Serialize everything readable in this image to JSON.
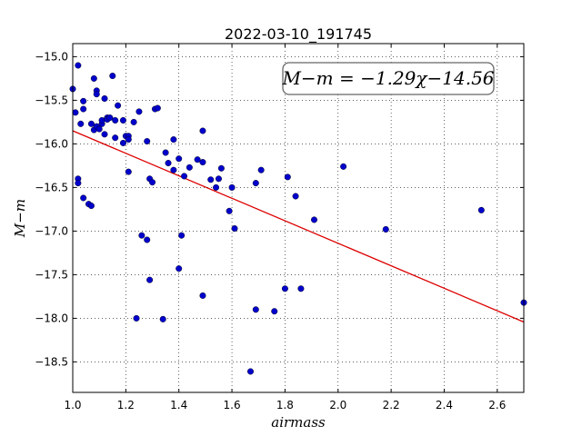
{
  "chart_data": {
    "type": "scatter",
    "title": "2022-03-10_191745",
    "xlabel": "airmass",
    "ylabel": "M−m",
    "xlim": [
      1.0,
      2.7
    ],
    "ylim": [
      -18.85,
      -14.85
    ],
    "x_ticks": [
      1.0,
      1.2,
      1.4,
      1.6,
      1.8,
      2.0,
      2.2,
      2.4,
      2.6
    ],
    "x_tick_labels": [
      "1.0",
      "1.2",
      "1.4",
      "1.6",
      "1.8",
      "2.0",
      "2.2",
      "2.4",
      "2.6"
    ],
    "y_ticks": [
      -15.0,
      -15.5,
      -16.0,
      -16.5,
      -17.0,
      -17.5,
      -18.0,
      -18.5
    ],
    "y_tick_labels": [
      "−15.0",
      "−15.5",
      "−16.0",
      "−16.5",
      "−17.0",
      "−17.5",
      "−18.0",
      "−18.5"
    ],
    "grid": true,
    "annotation": "M−m = −1.29χ−14.56",
    "marker_color": "#0000cc",
    "fit_color": "#dd0000",
    "fit": {
      "slope": -1.29,
      "intercept": -14.56,
      "x_range": [
        1.0,
        2.7
      ]
    },
    "points": [
      [
        1.0,
        -15.37
      ],
      [
        1.01,
        -15.64
      ],
      [
        1.02,
        -15.1
      ],
      [
        1.02,
        -16.4
      ],
      [
        1.02,
        -16.45
      ],
      [
        1.03,
        -15.77
      ],
      [
        1.04,
        -15.6
      ],
      [
        1.04,
        -15.51
      ],
      [
        1.04,
        -16.62
      ],
      [
        1.06,
        -16.69
      ],
      [
        1.07,
        -16.71
      ],
      [
        1.07,
        -15.77
      ],
      [
        1.08,
        -15.25
      ],
      [
        1.08,
        -15.84
      ],
      [
        1.09,
        -15.8
      ],
      [
        1.09,
        -15.39
      ],
      [
        1.09,
        -15.43
      ],
      [
        1.1,
        -15.83
      ],
      [
        1.11,
        -15.77
      ],
      [
        1.11,
        -15.73
      ],
      [
        1.12,
        -15.48
      ],
      [
        1.12,
        -15.89
      ],
      [
        1.13,
        -15.7
      ],
      [
        1.13,
        -15.72
      ],
      [
        1.14,
        -15.7
      ],
      [
        1.15,
        -15.22
      ],
      [
        1.16,
        -15.73
      ],
      [
        1.16,
        -15.93
      ],
      [
        1.17,
        -15.56
      ],
      [
        1.19,
        -15.73
      ],
      [
        1.19,
        -15.99
      ],
      [
        1.2,
        -15.91
      ],
      [
        1.21,
        -15.91
      ],
      [
        1.21,
        -15.95
      ],
      [
        1.21,
        -16.32
      ],
      [
        1.23,
        -15.75
      ],
      [
        1.24,
        -18.0
      ],
      [
        1.25,
        -15.63
      ],
      [
        1.26,
        -17.05
      ],
      [
        1.28,
        -17.1
      ],
      [
        1.28,
        -15.97
      ],
      [
        1.29,
        -16.4
      ],
      [
        1.29,
        -17.56
      ],
      [
        1.3,
        -16.44
      ],
      [
        1.31,
        -15.6
      ],
      [
        1.32,
        -15.59
      ],
      [
        1.34,
        -18.01
      ],
      [
        1.35,
        -16.1
      ],
      [
        1.36,
        -16.22
      ],
      [
        1.38,
        -15.95
      ],
      [
        1.38,
        -16.3
      ],
      [
        1.4,
        -17.43
      ],
      [
        1.4,
        -16.17
      ],
      [
        1.41,
        -17.05
      ],
      [
        1.42,
        -16.37
      ],
      [
        1.44,
        -16.27
      ],
      [
        1.47,
        -16.18
      ],
      [
        1.49,
        -16.21
      ],
      [
        1.49,
        -15.85
      ],
      [
        1.49,
        -17.74
      ],
      [
        1.52,
        -16.41
      ],
      [
        1.54,
        -16.5
      ],
      [
        1.55,
        -16.4
      ],
      [
        1.56,
        -16.28
      ],
      [
        1.59,
        -16.77
      ],
      [
        1.6,
        -16.5
      ],
      [
        1.61,
        -16.97
      ],
      [
        1.67,
        -18.61
      ],
      [
        1.69,
        -17.9
      ],
      [
        1.69,
        -16.45
      ],
      [
        1.71,
        -16.3
      ],
      [
        1.76,
        -17.92
      ],
      [
        1.8,
        -17.66
      ],
      [
        1.81,
        -16.38
      ],
      [
        1.84,
        -16.6
      ],
      [
        1.86,
        -17.66
      ],
      [
        1.91,
        -16.87
      ],
      [
        2.02,
        -16.26
      ],
      [
        2.18,
        -16.98
      ],
      [
        2.54,
        -16.76
      ],
      [
        2.7,
        -17.82
      ]
    ]
  }
}
